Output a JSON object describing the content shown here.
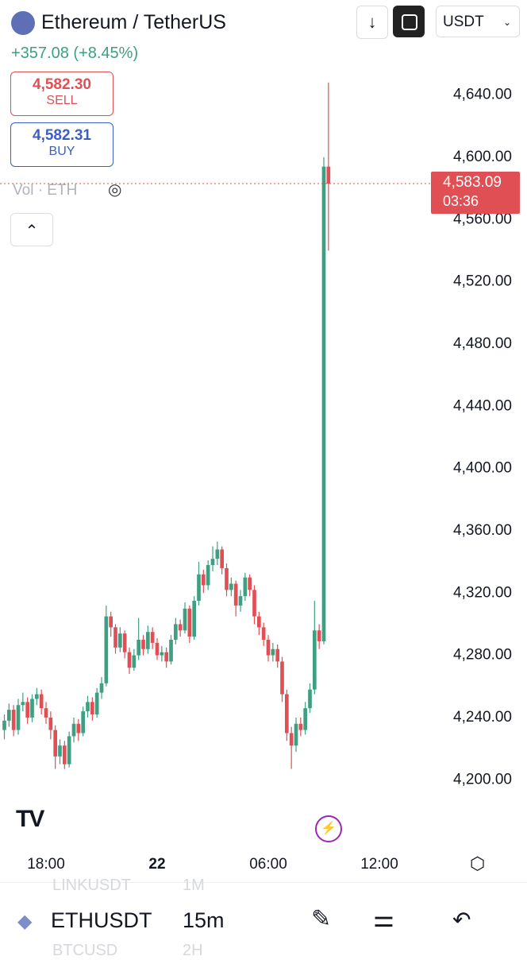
{
  "header": {
    "title": "Ethereum / TetherUS",
    "change": "+357.08 (+8.45%)",
    "currency": "USDT"
  },
  "trade": {
    "sell_price": "4,582.30",
    "sell_label": "SELL",
    "buy_price": "4,582.31",
    "buy_label": "BUY"
  },
  "chart_data": {
    "type": "candlestick",
    "volume_label": "Vol · ETH",
    "categories": [
      null,
      null,
      null,
      null,
      null,
      null,
      null,
      null,
      null,
      "18:00",
      null,
      null,
      null,
      null,
      null,
      null,
      null,
      null,
      null,
      null,
      null,
      null,
      null,
      null,
      null,
      null,
      null,
      null,
      null,
      null,
      null,
      null,
      null,
      "22",
      null,
      null,
      null,
      null,
      null,
      null,
      null,
      null,
      null,
      null,
      null,
      null,
      null,
      null,
      null,
      null,
      null,
      null,
      null,
      null,
      null,
      null,
      null,
      "06:00",
      null,
      null,
      null,
      null,
      null,
      null,
      null,
      null,
      null,
      null,
      null,
      null,
      null,
      null,
      null,
      null,
      null,
      null,
      null,
      null,
      null,
      null,
      null,
      "12:00",
      null,
      null,
      null,
      null,
      null,
      null,
      null,
      null,
      null,
      null,
      null
    ],
    "open": [
      4232,
      4238,
      4245,
      4232,
      4248,
      4250,
      4240,
      4252,
      4255,
      4246,
      4240,
      4232,
      4215,
      4222,
      4210,
      4228,
      4236,
      4230,
      4244,
      4250,
      4242,
      4256,
      4262,
      4305,
      4298,
      4285,
      4294,
      4282,
      4272,
      4280,
      4290,
      4284,
      4295,
      4288,
      4280,
      4282,
      4276,
      4290,
      4300,
      4296,
      4310,
      4292,
      4315,
      4332,
      4325,
      4338,
      4342,
      4348,
      4336,
      4322,
      4326,
      4312,
      4318,
      4330,
      4322,
      4305,
      4298,
      4290,
      4280,
      4284,
      4276,
      4255,
      4230,
      4222,
      4236,
      4232,
      4246,
      4258,
      4296,
      4289,
      4594,
      null,
      null,
      null,
      null,
      null,
      null,
      null,
      null,
      null,
      null,
      null,
      null,
      null,
      null,
      null,
      null,
      null,
      null,
      null,
      null,
      null,
      null
    ],
    "high": [
      4242,
      4249,
      4248,
      4252,
      4256,
      4253,
      4255,
      4259,
      4258,
      4250,
      4244,
      4235,
      4226,
      4225,
      4231,
      4240,
      4239,
      4247,
      4254,
      4253,
      4259,
      4266,
      4312,
      4308,
      4300,
      4298,
      4296,
      4285,
      4284,
      4304,
      4293,
      4299,
      4298,
      4291,
      4286,
      4285,
      4293,
      4304,
      4303,
      4314,
      4312,
      4318,
      4340,
      4335,
      4341,
      4350,
      4353,
      4350,
      4339,
      4330,
      4328,
      4322,
      4333,
      4332,
      4325,
      4308,
      4301,
      4293,
      4288,
      4287,
      4279,
      4258,
      4234,
      4240,
      4240,
      4250,
      4262,
      4315,
      4300,
      4600,
      4648,
      null,
      null,
      null,
      null,
      null,
      null,
      null,
      null,
      null,
      null,
      null,
      null,
      null,
      null,
      null,
      null,
      null,
      null,
      null,
      null,
      null,
      null
    ],
    "low": [
      4226,
      4234,
      4228,
      4229,
      4244,
      4236,
      4237,
      4248,
      4242,
      4236,
      4226,
      4207,
      4210,
      4207,
      4208,
      4224,
      4225,
      4228,
      4240,
      4238,
      4240,
      4252,
      4260,
      4292,
      4281,
      4282,
      4278,
      4268,
      4270,
      4277,
      4280,
      4281,
      4284,
      4277,
      4276,
      4272,
      4274,
      4287,
      4292,
      4294,
      4288,
      4290,
      4312,
      4320,
      4322,
      4334,
      4338,
      4332,
      4318,
      4318,
      4305,
      4308,
      4315,
      4318,
      4300,
      4293,
      4286,
      4276,
      4276,
      4272,
      4250,
      4225,
      4207,
      4218,
      4228,
      4229,
      4243,
      4255,
      4284,
      4287,
      4540,
      null,
      null,
      null,
      null,
      null,
      null,
      null,
      null,
      null,
      null,
      null,
      null,
      null,
      null,
      null,
      null,
      null,
      null,
      null,
      null,
      null,
      null
    ],
    "close": [
      4238,
      4245,
      4232,
      4248,
      4250,
      4240,
      4252,
      4255,
      4246,
      4240,
      4232,
      4215,
      4222,
      4210,
      4228,
      4236,
      4230,
      4244,
      4250,
      4242,
      4256,
      4262,
      4305,
      4298,
      4285,
      4294,
      4282,
      4272,
      4280,
      4290,
      4284,
      4295,
      4288,
      4280,
      4282,
      4276,
      4290,
      4300,
      4296,
      4310,
      4292,
      4315,
      4332,
      4325,
      4338,
      4342,
      4348,
      4336,
      4322,
      4326,
      4312,
      4318,
      4330,
      4322,
      4305,
      4298,
      4290,
      4280,
      4284,
      4276,
      4255,
      4230,
      4222,
      4236,
      4232,
      4246,
      4258,
      4296,
      4289,
      4594,
      4583.09,
      null,
      null,
      null,
      null,
      null,
      null,
      null,
      null,
      null,
      null,
      null,
      null,
      null,
      null,
      null,
      null,
      null,
      null,
      null,
      null,
      null,
      null
    ],
    "up_color": "#3f9f82",
    "down_color": "#e04f54",
    "ylim": [
      4170,
      4650
    ],
    "yticks": [
      {
        "value": 4200,
        "label": "4,200.00"
      },
      {
        "value": 4240,
        "label": "4,240.00"
      },
      {
        "value": 4280,
        "label": "4,280.00"
      },
      {
        "value": 4320,
        "label": "4,320.00"
      },
      {
        "value": 4360,
        "label": "4,360.00"
      },
      {
        "value": 4400,
        "label": "4,400.00"
      },
      {
        "value": 4440,
        "label": "4,440.00"
      },
      {
        "value": 4480,
        "label": "4,480.00"
      },
      {
        "value": 4520,
        "label": "4,520.00"
      },
      {
        "value": 4560,
        "label": "4,560.00"
      },
      {
        "value": 4600,
        "label": "4,600.00"
      },
      {
        "value": 4640,
        "label": "4,640.00"
      }
    ],
    "last_price": {
      "value": 4583.09,
      "label": "4,583.09"
    },
    "countdown": "03:36"
  },
  "toolbar": {
    "symbol": "ETHUSDT",
    "interval": "15m",
    "prev_symbol": "LINKUSDT",
    "prev_interval": "1M",
    "next_symbol": "BTCUSD",
    "next_interval": "2H"
  }
}
